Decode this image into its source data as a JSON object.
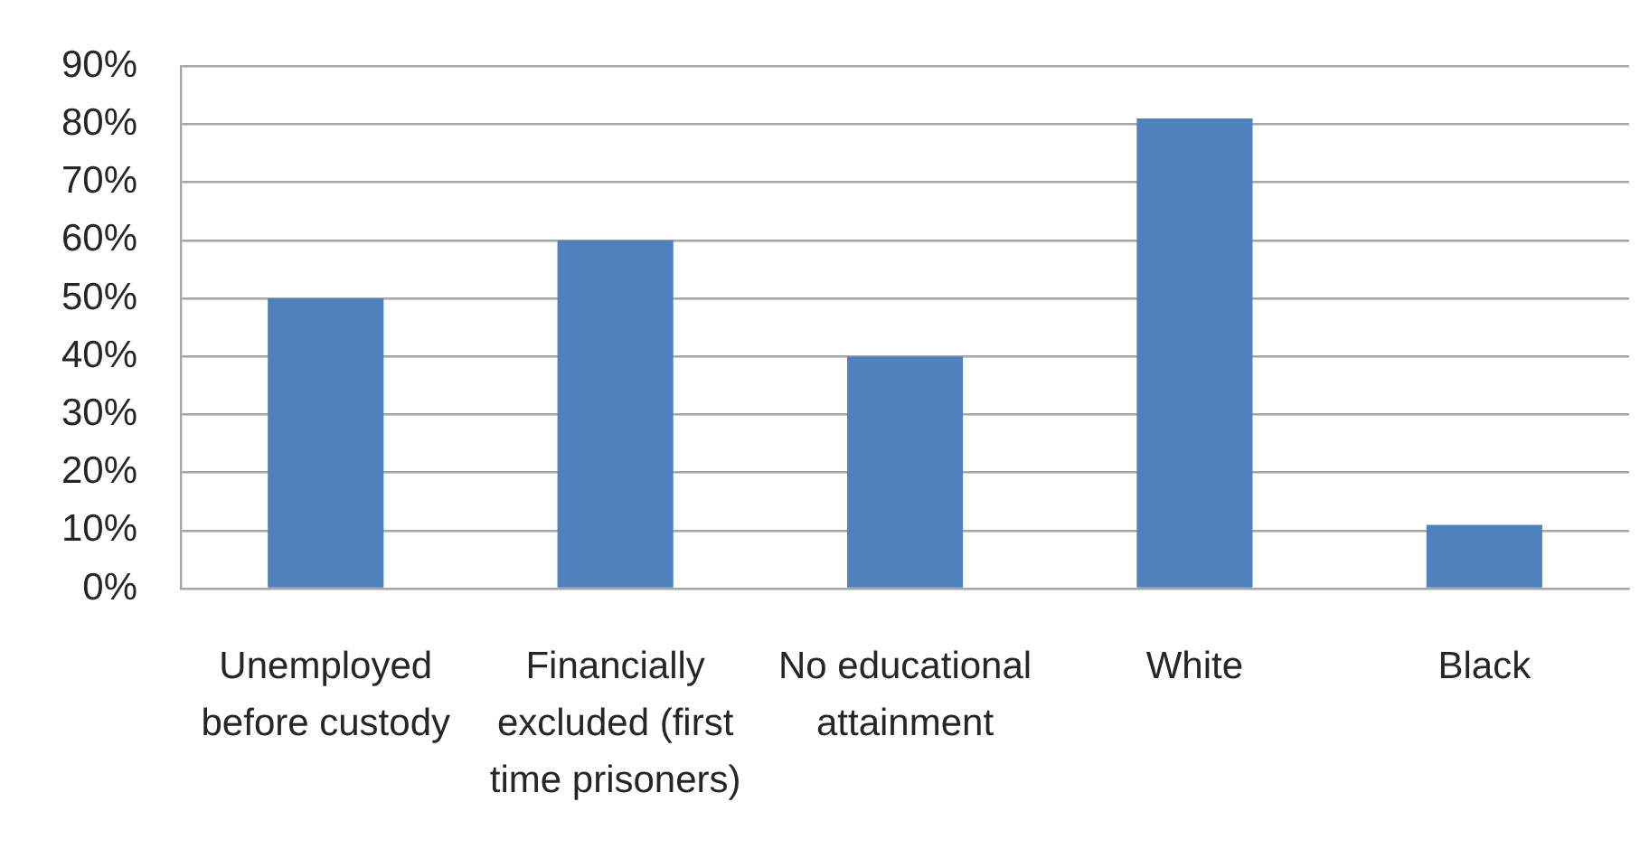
{
  "chart_data": {
    "type": "bar",
    "categories": [
      "Unemployed before custody",
      "Financially excluded (first time prisoners)",
      "No educational attainment",
      "White",
      "Black"
    ],
    "values": [
      50,
      60,
      40,
      81,
      11
    ],
    "color": "#4f81bd",
    "ylim": [
      0,
      90
    ],
    "yticks": [
      {
        "value": 0,
        "label": "0%"
      },
      {
        "value": 10,
        "label": "10%"
      },
      {
        "value": 20,
        "label": "20%"
      },
      {
        "value": 30,
        "label": "30%"
      },
      {
        "value": 40,
        "label": "40%"
      },
      {
        "value": 50,
        "label": "50%"
      },
      {
        "value": 60,
        "label": "60%"
      },
      {
        "value": 70,
        "label": "70%"
      },
      {
        "value": 80,
        "label": "80%"
      },
      {
        "value": 90,
        "label": "90%"
      }
    ],
    "grid": "y"
  }
}
